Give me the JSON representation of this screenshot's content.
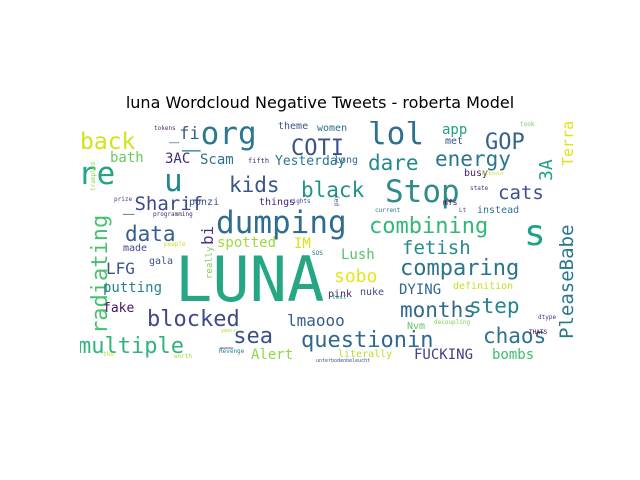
{
  "chart_data": {
    "type": "wordcloud",
    "title": "luna Wordcloud Negative Tweets - roberta Model",
    "words": [
      {
        "text": "LUNA",
        "color": "#26a784"
      },
      {
        "text": "dumping",
        "color": "#2f6d8e"
      },
      {
        "text": "Stop",
        "color": "#2f8b8c"
      },
      {
        "text": "re",
        "color": "#21a585"
      },
      {
        "text": "u",
        "color": "#24878e"
      },
      {
        "text": "_org",
        "color": "#2a788e"
      },
      {
        "text": "lol",
        "color": "#2d718e"
      },
      {
        "text": "s",
        "color": "#1fa088"
      },
      {
        "text": "back",
        "color": "#d2e21b"
      },
      {
        "text": "COTI",
        "color": "#3b528b"
      },
      {
        "text": "GOP",
        "color": "#33628d"
      },
      {
        "text": "combining",
        "color": "#35b779"
      },
      {
        "text": "comparing",
        "color": "#2c738e"
      },
      {
        "text": "questionin",
        "color": "#31688e"
      },
      {
        "text": "multiple",
        "color": "#2fb47c"
      },
      {
        "text": "blocked",
        "color": "#3e4a89"
      },
      {
        "text": "_sea",
        "color": "#3d4e8a"
      },
      {
        "text": "radiating",
        "color": "#48c16e"
      },
      {
        "text": "data",
        "color": "#355f8d"
      },
      {
        "text": "kids",
        "color": "#39568c"
      },
      {
        "text": "black",
        "color": "#20928c"
      },
      {
        "text": "dare",
        "color": "#228c8d"
      },
      {
        "text": "energy",
        "color": "#2a768e"
      },
      {
        "text": "months",
        "color": "#30698e"
      },
      {
        "text": "step",
        "color": "#25848e"
      },
      {
        "text": "chaos",
        "color": "#2c718e"
      },
      {
        "text": "cats",
        "color": "#3b528b"
      },
      {
        "text": "PleaseBabe",
        "color": "#2a788e"
      },
      {
        "text": "fetish",
        "color": "#238a8d"
      },
      {
        "text": "sobo",
        "color": "#e7e419"
      },
      {
        "text": "_Sharif",
        "color": "#3e4989"
      },
      {
        "text": "_fi",
        "color": "#38598c"
      },
      {
        "text": "3A",
        "color": "#1f9f88"
      },
      {
        "text": "Terra",
        "color": "#dde318"
      },
      {
        "text": "bi",
        "color": "#453781"
      },
      {
        "text": "LFG",
        "color": "#3a538b"
      },
      {
        "text": "lmaooo",
        "color": "#355e8d"
      },
      {
        "text": "app",
        "color": "#1fa187"
      },
      {
        "text": "Scam",
        "color": "#2c728e"
      },
      {
        "text": "3AC",
        "color": "#482878"
      },
      {
        "text": "bath",
        "color": "#67cc5c"
      },
      {
        "text": "Yesterday",
        "color": "#2a788e"
      },
      {
        "text": "spotted",
        "color": "#a0da39"
      },
      {
        "text": "IM",
        "color": "#d8e219"
      },
      {
        "text": "Lush",
        "color": "#52c569"
      },
      {
        "text": "DYING",
        "color": "#31678e"
      },
      {
        "text": "putting",
        "color": "#26828e"
      },
      {
        "text": "fake",
        "color": "#471164"
      },
      {
        "text": "FUCKING",
        "color": "#433e85"
      },
      {
        "text": "bombs",
        "color": "#3fbc73"
      },
      {
        "text": "Alert",
        "color": "#8fd744"
      },
      {
        "text": "theme",
        "color": "#3b528b"
      },
      {
        "text": "women",
        "color": "#2e6e8e"
      },
      {
        "text": "met",
        "color": "#3b528b"
      },
      {
        "text": "busy",
        "color": "#481f70"
      },
      {
        "text": "instead",
        "color": "#2c728e"
      },
      {
        "text": "mfs",
        "color": "#440154"
      },
      {
        "text": "made",
        "color": "#3e4989"
      },
      {
        "text": "gala",
        "color": "#3a538b"
      },
      {
        "text": "things",
        "color": "#482475"
      },
      {
        "text": "ponzi",
        "color": "#3b528b"
      },
      {
        "text": "pink",
        "color": "#481a6c"
      },
      {
        "text": "nuke",
        "color": "#3e4a89"
      },
      {
        "text": "definition",
        "color": "#c2df23"
      },
      {
        "text": "Nvm",
        "color": "#5ec962"
      },
      {
        "text": "literally",
        "color": "#b5de2b"
      },
      {
        "text": "long",
        "color": "#31688e"
      },
      {
        "text": "fifth",
        "color": "#472d7b"
      },
      {
        "text": "tokens",
        "color": "#46307e"
      },
      {
        "text": "programming",
        "color": "#482475"
      },
      {
        "text": "prize",
        "color": "#3e4989"
      },
      {
        "text": "really",
        "color": "#7ad151"
      },
      {
        "text": "people",
        "color": "#c8e020"
      },
      {
        "text": "current",
        "color": "#2a788e"
      },
      {
        "text": "state",
        "color": "#443983"
      },
      {
        "text": "dtype",
        "color": "#46337f"
      },
      {
        "text": "THATS",
        "color": "#440154"
      },
      {
        "text": "decoupling",
        "color": "#7ad151"
      },
      {
        "text": "Revenge",
        "color": "#26828e"
      },
      {
        "text": "worth",
        "color": "#a5db36"
      },
      {
        "text": "rights",
        "color": "#3e4989"
      },
      {
        "text": "years",
        "color": "#b5de2b"
      },
      {
        "text": "tho",
        "color": "#bddf26"
      },
      {
        "text": "unterbodenbeleucht",
        "color": "#3b528b"
      },
      {
        "text": "Bitcoin",
        "color": "#c2df23"
      },
      {
        "text": "trampled",
        "color": "#8fd744"
      },
      {
        "text": "pay",
        "color": "#3b528b"
      },
      {
        "text": "test",
        "color": "#20a486"
      },
      {
        "text": "SOS",
        "color": "#2c728e"
      },
      {
        "text": "Lt",
        "color": "#3e4989"
      },
      {
        "text": "took",
        "color": "#7ad151"
      }
    ]
  }
}
